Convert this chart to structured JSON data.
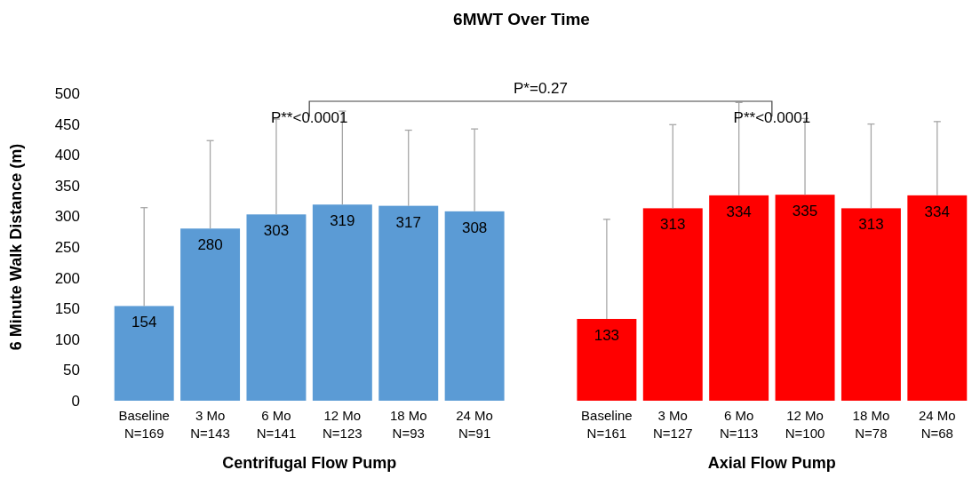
{
  "chart_data": {
    "type": "bar",
    "title": "6MWT Over Time",
    "ylabel": "6 Minute Walk Distance (m)",
    "categories": [
      "Baseline\nN=169",
      "3 Mo\nN=143",
      "6 Mo\nN=141",
      "12 Mo\nN=123",
      "18 Mo\nN=93",
      "24 Mo\nN=91",
      null,
      "Baseline\nN=161",
      "3 Mo\nN=127",
      "6 Mo\nN=113",
      "12 Mo\nN=100",
      "18 Mo\nN=78",
      "24 Mo\nN=68"
    ],
    "series": [
      {
        "color": "#5b9bd5",
        "values": [
          154,
          280,
          303,
          319,
          317,
          308,
          null,
          null,
          null,
          null,
          null,
          null,
          null
        ],
        "errors": [
          [
            154,
            314
          ],
          [
            280,
            423
          ],
          [
            303,
            458
          ],
          [
            319,
            471
          ],
          [
            317,
            440
          ],
          [
            308,
            442
          ],
          null,
          null,
          null,
          null,
          null,
          null,
          null
        ]
      },
      {
        "color": "#ff0000",
        "values": [
          null,
          null,
          null,
          null,
          null,
          null,
          null,
          133,
          313,
          334,
          335,
          313,
          334
        ],
        "errors": [
          null,
          null,
          null,
          null,
          null,
          null,
          null,
          [
            133,
            295
          ],
          [
            313,
            449
          ],
          [
            334,
            485
          ],
          [
            335,
            459
          ],
          [
            313,
            450
          ],
          [
            334,
            454
          ]
        ]
      }
    ],
    "ylim": [
      0,
      500
    ],
    "yticks": [
      0,
      50,
      100,
      150,
      200,
      250,
      300,
      350,
      400,
      450,
      500
    ],
    "grid": false,
    "data_labels": true,
    "annotations": [
      "P*=0.27",
      "P**<0.0001",
      "P**<0.0001",
      "Centrifugal Flow Pump",
      "Axial Flow Pump"
    ]
  }
}
